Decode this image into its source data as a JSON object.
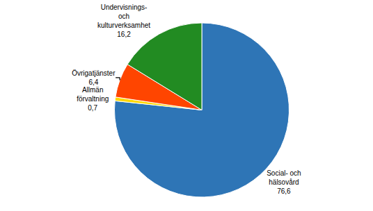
{
  "chart_data": {
    "type": "pie",
    "categories": [
      "Social- och\nhälsovård",
      "Allmän\nförvaltning",
      "Övrigatjänster",
      "Undervisnings-\noch\nkulturverksamhet"
    ],
    "values": [
      76.6,
      0.7,
      6.4,
      16.2
    ],
    "value_labels": [
      "76,6",
      "0,7",
      "6,4",
      "16,2"
    ],
    "data_labels": true,
    "colors": [
      "#2E75B6",
      "#FFD700",
      "#FF4500",
      "#228B22"
    ]
  }
}
